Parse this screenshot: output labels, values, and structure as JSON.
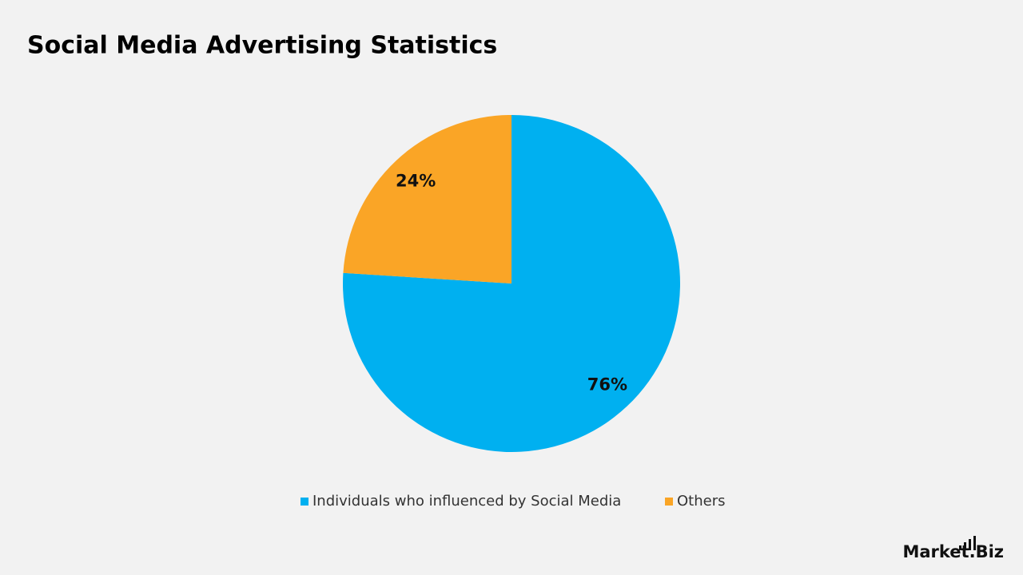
{
  "chart_data": {
    "type": "pie",
    "title": "Social Media Advertising Statistics",
    "categories": [
      "Individuals who influenced by Social Media",
      "Others"
    ],
    "values": [
      76,
      24
    ],
    "value_labels": [
      "76%",
      "24%"
    ],
    "colors": [
      "#00b0f0",
      "#faa526"
    ],
    "legend": "bottom"
  },
  "logo": "Market.Biz"
}
